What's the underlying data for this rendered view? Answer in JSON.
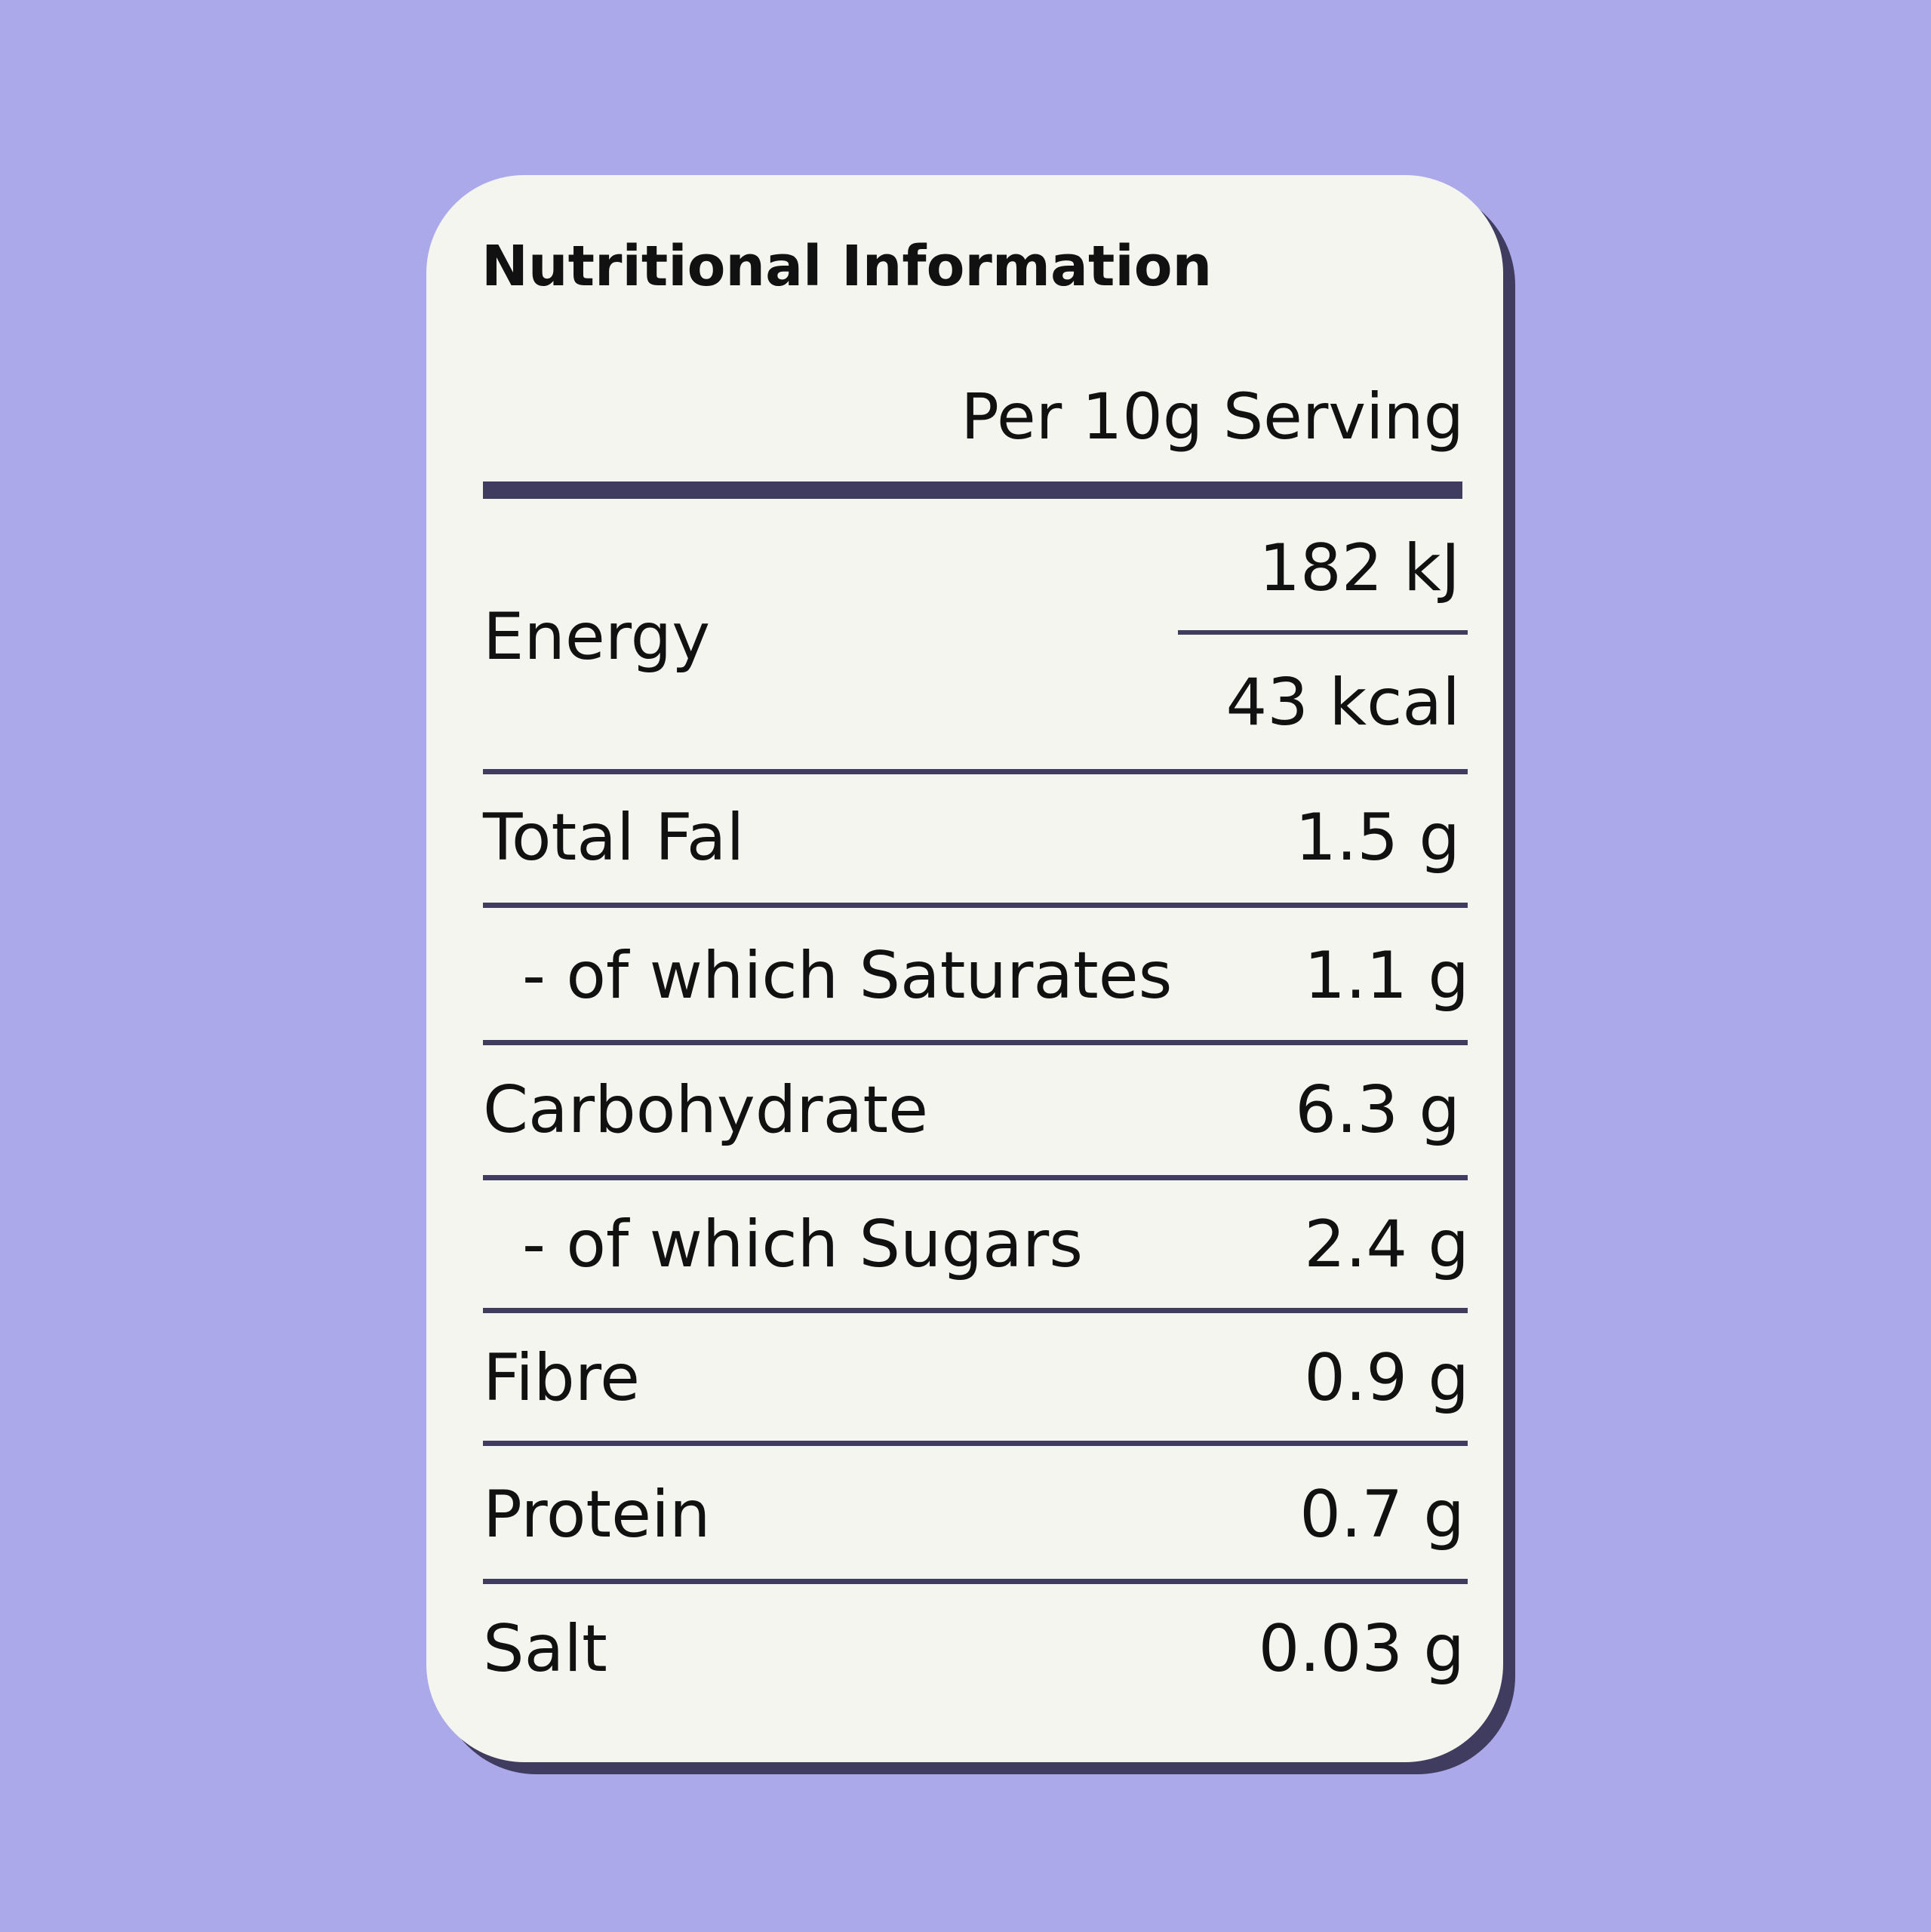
{
  "colors": {
    "background": "#aba9ea",
    "card": "#f5f5ef",
    "rule": "#403c60",
    "text": "#111111"
  },
  "title": "Nutritional Information",
  "column_header": "Per 10g Serving",
  "energy": {
    "label": "Energy",
    "kj": "182 kJ",
    "kcal": "43 kcal"
  },
  "rows": [
    {
      "label": "Total Fal",
      "value": "1.5 g"
    },
    {
      "label": "- of which Saturates",
      "value": "1.1 g"
    },
    {
      "label": "Carbohydrate",
      "value": "6.3 g"
    },
    {
      "label": "- of which Sugars",
      "value": "2.4 g"
    },
    {
      "label": "Fibre",
      "value": "0.9 g"
    },
    {
      "label": "Protein",
      "value": "0.7 g"
    },
    {
      "label": "Salt",
      "value": "0.03 g"
    }
  ]
}
